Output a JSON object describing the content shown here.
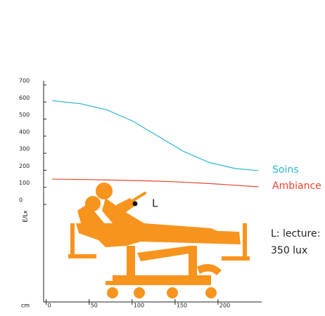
{
  "chart_data": {
    "type": "line",
    "y_label": "E/Lx",
    "x_label": "cm",
    "x": [
      7,
      40,
      70,
      100,
      130,
      160,
      190,
      220,
      247
    ],
    "series": [
      {
        "name": "Soins",
        "color": "#29b6d1",
        "values": [
          608,
          590,
          555,
          490,
          400,
          310,
          245,
          210,
          198
        ]
      },
      {
        "name": "Ambiance",
        "color": "#e8442e",
        "values": [
          148,
          146,
          143,
          140,
          136,
          130,
          122,
          112,
          103
        ]
      }
    ],
    "xlim": [
      -3,
      250
    ],
    "xticks": [
      0,
      50,
      100,
      150,
      200
    ],
    "ylim": [
      0,
      700
    ],
    "yticks": [
      0,
      100,
      200,
      300,
      400,
      500,
      600,
      700
    ],
    "point_label": "L",
    "note": [
      "L: lecture:",
      "350 lux"
    ]
  }
}
